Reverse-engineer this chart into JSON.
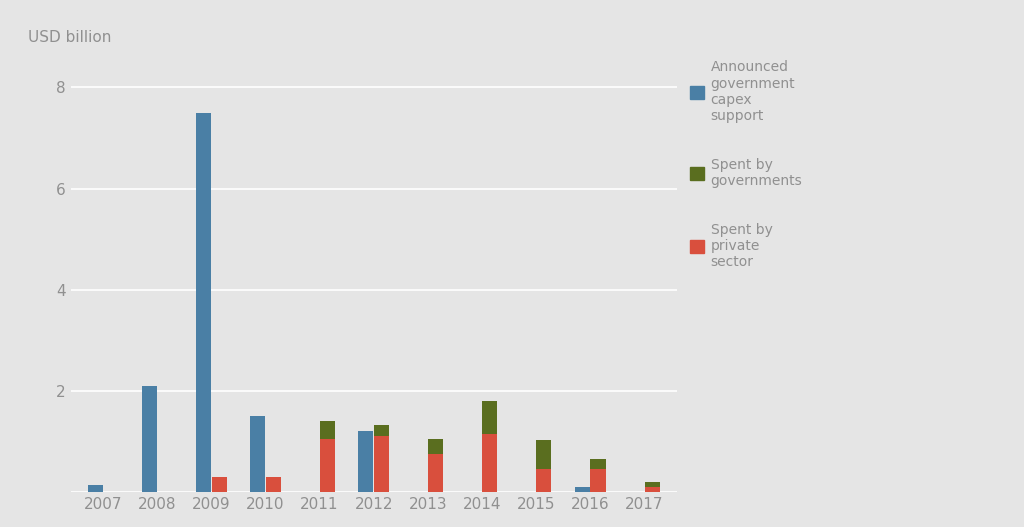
{
  "years": [
    2007,
    2008,
    2009,
    2010,
    2011,
    2012,
    2013,
    2014,
    2015,
    2016,
    2017
  ],
  "announced_gov": [
    0.15,
    2.1,
    7.5,
    1.5,
    0.0,
    1.2,
    0.0,
    0.0,
    0.0,
    0.1,
    0.0
  ],
  "spent_private": [
    0.0,
    0.0,
    0.3,
    0.3,
    1.05,
    1.1,
    0.75,
    1.15,
    0.45,
    0.45,
    0.1
  ],
  "spent_gov": [
    0.0,
    0.0,
    0.0,
    0.0,
    0.35,
    0.22,
    0.3,
    0.65,
    0.58,
    0.2,
    0.1
  ],
  "color_announced": "#4a7fa5",
  "color_private": "#d94f3d",
  "color_gov": "#5a6e1f",
  "background_color": "#e5e5e5",
  "grid_color": "#ffffff",
  "text_color": "#909090",
  "top_label": "USD billion",
  "ylim": [
    0,
    8.5
  ],
  "yticks": [
    0,
    2,
    4,
    6,
    8
  ],
  "bar_width": 0.28,
  "legend_labels": [
    "Announced\ngovernment\ncapex\nsupport",
    "Spent by\ngovernments",
    "Spent by\nprivate\nsector"
  ]
}
